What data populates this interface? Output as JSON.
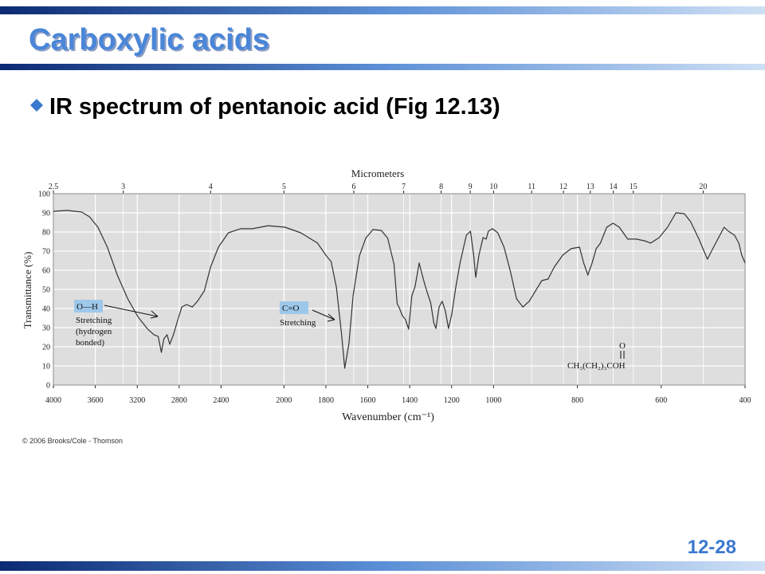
{
  "slide": {
    "title": "Carboxylic acids",
    "bullet": "IR spectrum of pentanoic acid (Fig 12.13)",
    "page_number": "12-28",
    "credit": "© 2006 Brooks/Cole - Thomson"
  },
  "chart_data": {
    "type": "line",
    "x2_label": "Micrometers",
    "x_label": "Wavenumber (cm⁻¹)",
    "y_label": "Transmittance (%)",
    "color": "#333333",
    "grid": true,
    "xlim": [
      4000,
      400
    ],
    "xscale": {
      "breaks": [
        2200,
        1000
      ],
      "stretch": [
        1,
        2,
        4
      ]
    },
    "xticks": [
      4000,
      3600,
      3200,
      2800,
      2400,
      2000,
      1800,
      1600,
      1400,
      1200,
      1000,
      800,
      600,
      400
    ],
    "x2ticks": [
      2.5,
      3,
      4,
      5,
      6,
      7,
      8,
      9,
      10,
      11,
      12,
      13,
      14,
      15,
      20
    ],
    "ylim": [
      0,
      100
    ],
    "yticks": [
      0,
      10,
      20,
      30,
      40,
      50,
      60,
      70,
      80,
      90,
      100
    ],
    "x": [
      4000,
      3870,
      3730,
      3655,
      3575,
      3485,
      3390,
      3290,
      3190,
      3100,
      3040,
      3000,
      2970,
      2945,
      2915,
      2890,
      2855,
      2810,
      2775,
      2730,
      2675,
      2625,
      2560,
      2500,
      2425,
      2330,
      2215,
      2150,
      2075,
      1995,
      1920,
      1840,
      1795,
      1775,
      1750,
      1725,
      1710,
      1690,
      1670,
      1640,
      1610,
      1575,
      1535,
      1505,
      1475,
      1460,
      1450,
      1435,
      1420,
      1405,
      1390,
      1375,
      1365,
      1355,
      1340,
      1330,
      1315,
      1300,
      1285,
      1275,
      1260,
      1245,
      1230,
      1215,
      1200,
      1180,
      1160,
      1130,
      1110,
      1095,
      1085,
      1070,
      1050,
      1035,
      1025,
      1005,
      990,
      975,
      960,
      945,
      930,
      915,
      900,
      885,
      870,
      855,
      835,
      815,
      795,
      785,
      775,
      765,
      755,
      745,
      730,
      715,
      700,
      680,
      660,
      640,
      625,
      605,
      585,
      565,
      545,
      530,
      510,
      490,
      480,
      465,
      450,
      440,
      425,
      415,
      408,
      400
    ],
    "values": [
      90.8,
      91.3,
      90.4,
      87.9,
      82.5,
      72.1,
      57.5,
      45.0,
      35.4,
      29.2,
      26.3,
      25.4,
      17.1,
      24.2,
      26.3,
      21.3,
      26.3,
      34.6,
      40.8,
      42.1,
      40.8,
      43.8,
      49.2,
      61.7,
      72.1,
      79.6,
      81.7,
      81.7,
      83.3,
      82.5,
      79.6,
      74.2,
      67.1,
      64.6,
      51.2,
      26.3,
      8.8,
      21.7,
      46.7,
      67.5,
      76.7,
      81.3,
      80.8,
      76.7,
      63.3,
      42.5,
      40.4,
      36.3,
      34.2,
      29.2,
      46.7,
      51.2,
      57.5,
      63.8,
      57.5,
      53.3,
      47.9,
      42.9,
      32.5,
      29.6,
      40.8,
      43.8,
      38.8,
      29.6,
      36.7,
      51.2,
      63.8,
      78.3,
      80.4,
      67.9,
      56.3,
      67.9,
      77.1,
      76.3,
      80.4,
      81.7,
      79.6,
      72.1,
      59.6,
      45.0,
      40.8,
      43.8,
      49.2,
      54.6,
      55.4,
      61.7,
      67.9,
      71.3,
      72.1,
      63.8,
      57.5,
      63.8,
      71.3,
      74.2,
      82.5,
      84.6,
      82.5,
      76.3,
      76.3,
      75.4,
      74.2,
      77.1,
      82.5,
      90.0,
      89.6,
      85.4,
      76.3,
      65.8,
      70.0,
      76.3,
      82.5,
      80.4,
      78.3,
      74.2,
      67.9,
      63.8
    ],
    "annotations": {
      "oh_label": "O—H",
      "oh_text": [
        "Stretching",
        "(hydrogen",
        "bonded)"
      ],
      "co_label": "C=O",
      "co_text": "Stretching",
      "formula_top": "O",
      "formula": "CH₃(CH₂)₃COH"
    }
  }
}
